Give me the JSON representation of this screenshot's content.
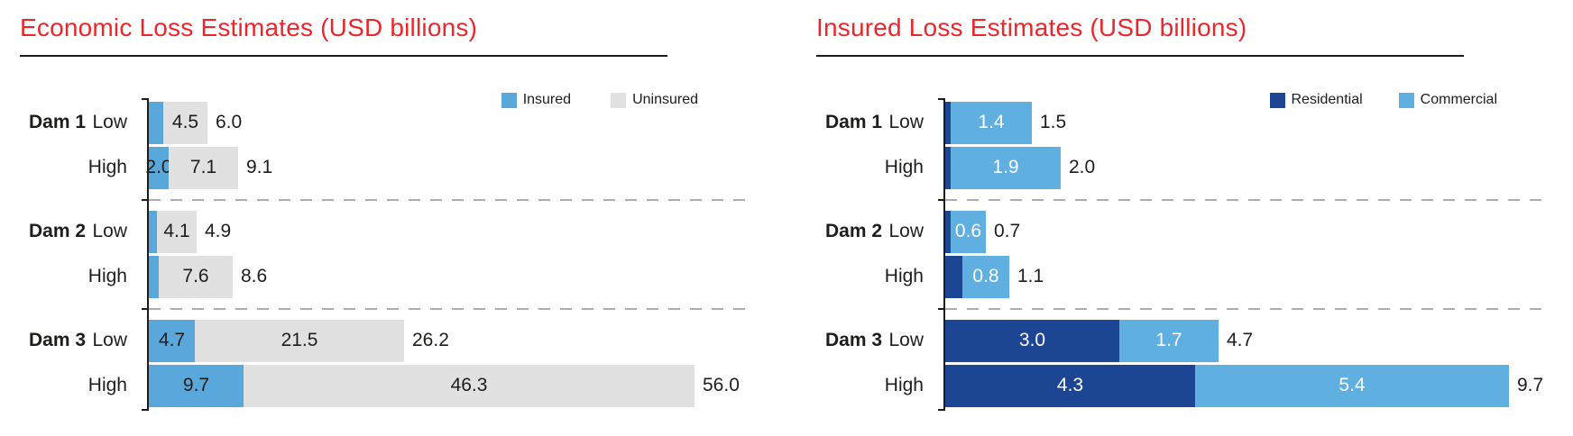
{
  "chart_data": [
    {
      "type": "bar",
      "orientation": "horizontal",
      "stacked": true,
      "title": "Economic Loss Estimates (USD billions)",
      "title_color": "#e8282c",
      "legend_position": "top-right",
      "grid": "dashed group separators only",
      "x_max": 56.0,
      "value_label_color": "#1d1d1b",
      "legend": [
        {
          "name": "Insured",
          "color": "#5aa7db"
        },
        {
          "name": "Uninsured",
          "color": "#e1e1e2"
        }
      ],
      "groups": [
        {
          "category": "Dam 1",
          "rows": [
            {
              "level": "Low",
              "values": [
                1.5,
                4.5
              ],
              "segment_labels": [
                "",
                "4.5"
              ],
              "total": 6.0,
              "total_label": "6.0"
            },
            {
              "level": "High",
              "values": [
                2.0,
                7.1
              ],
              "segment_labels": [
                "2.0",
                "7.1"
              ],
              "total": 9.1,
              "total_label": "9.1"
            }
          ]
        },
        {
          "category": "Dam 2",
          "rows": [
            {
              "level": "Low",
              "values": [
                0.8,
                4.1
              ],
              "segment_labels": [
                "",
                "4.1"
              ],
              "total": 4.9,
              "total_label": "4.9"
            },
            {
              "level": "High",
              "values": [
                1.0,
                7.6
              ],
              "segment_labels": [
                "",
                "7.6"
              ],
              "total": 8.6,
              "total_label": "8.6"
            }
          ]
        },
        {
          "category": "Dam 3",
          "rows": [
            {
              "level": "Low",
              "values": [
                4.7,
                21.5
              ],
              "segment_labels": [
                "4.7",
                "21.5"
              ],
              "total": 26.2,
              "total_label": "26.2"
            },
            {
              "level": "High",
              "values": [
                9.7,
                46.3
              ],
              "segment_labels": [
                "9.7",
                "46.3"
              ],
              "total": 56.0,
              "total_label": "56.0"
            }
          ]
        }
      ]
    },
    {
      "type": "bar",
      "orientation": "horizontal",
      "stacked": true,
      "title": "Insured Loss Estimates (USD billions)",
      "title_color": "#e8282c",
      "legend_position": "top-right",
      "grid": "dashed group separators only",
      "x_max": 9.7,
      "value_label_color": "#ffffff",
      "legend": [
        {
          "name": "Residential",
          "color": "#1c4693"
        },
        {
          "name": "Commercial",
          "color": "#5fafe0"
        }
      ],
      "groups": [
        {
          "category": "Dam 1",
          "rows": [
            {
              "level": "Low",
              "values": [
                0.1,
                1.4
              ],
              "segment_labels": [
                "",
                "1.4"
              ],
              "total": 1.5,
              "total_label": "1.5"
            },
            {
              "level": "High",
              "values": [
                0.1,
                1.9
              ],
              "segment_labels": [
                "",
                "1.9"
              ],
              "total": 2.0,
              "total_label": "2.0"
            }
          ]
        },
        {
          "category": "Dam 2",
          "rows": [
            {
              "level": "Low",
              "values": [
                0.1,
                0.6
              ],
              "segment_labels": [
                "",
                "0.6"
              ],
              "total": 0.7,
              "total_label": "0.7"
            },
            {
              "level": "High",
              "values": [
                0.3,
                0.8
              ],
              "segment_labels": [
                "",
                "0.8"
              ],
              "total": 1.1,
              "total_label": "1.1"
            }
          ]
        },
        {
          "category": "Dam 3",
          "rows": [
            {
              "level": "Low",
              "values": [
                3.0,
                1.7
              ],
              "segment_labels": [
                "3.0",
                "1.7"
              ],
              "total": 4.7,
              "total_label": "4.7"
            },
            {
              "level": "High",
              "values": [
                4.3,
                5.4
              ],
              "segment_labels": [
                "4.3",
                "5.4"
              ],
              "total": 9.7,
              "total_label": "9.7"
            }
          ]
        }
      ]
    }
  ]
}
